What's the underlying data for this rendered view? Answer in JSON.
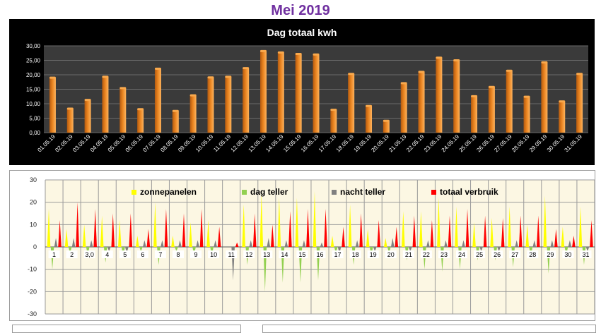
{
  "page_title": "Mei 2019",
  "chart_data": [
    {
      "type": "bar",
      "title": "Dag totaal kwh",
      "xlabel": "",
      "ylabel": "",
      "ylim": [
        0,
        30
      ],
      "yticks": [
        "0,00",
        "5,00",
        "10,00",
        "15,00",
        "20,00",
        "25,00",
        "30,00"
      ],
      "grid": true,
      "colors": {
        "bar": "#e8821e",
        "background": "#000000",
        "plot_area": "#3a3a3a",
        "text": "#ffffff"
      },
      "categories": [
        "01.05.19",
        "02.05.19",
        "03.05.19",
        "04.05.19",
        "05.05.19",
        "06.05.19",
        "07.05.19",
        "08.05.19",
        "09.05.19",
        "10.05.19",
        "11.05.19",
        "12.05.19",
        "13.05.19",
        "14.05.19",
        "15.05.19",
        "16.05.19",
        "17.05.19",
        "18.05.19",
        "19.05.19",
        "20.05.19",
        "21.05.19",
        "22.05.19",
        "23.05.19",
        "24.05.19",
        "25.05.19",
        "26.05.19",
        "27.05.19",
        "28.05.19",
        "29.05.19",
        "30.05.19",
        "31.05.19"
      ],
      "values": [
        19.0,
        8.3,
        11.3,
        19.3,
        15.4,
        8.1,
        22.1,
        7.5,
        12.9,
        19.1,
        19.3,
        22.3,
        28.2,
        27.7,
        27.2,
        27.0,
        7.9,
        20.3,
        9.2,
        4.1,
        17.1,
        21.0,
        25.9,
        25.0,
        12.6,
        15.8,
        21.4,
        12.4,
        24.3,
        10.8,
        20.3
      ]
    },
    {
      "type": "area",
      "title": "",
      "xlabel": "",
      "ylabel": "",
      "ylim": [
        -30,
        30
      ],
      "yticks": [
        "-30",
        "-20",
        "-10",
        "0",
        "10",
        "20",
        "30"
      ],
      "grid": true,
      "legend_position": "top",
      "categories": [
        "1",
        "2",
        "3,0",
        "4",
        "5",
        "6",
        "7",
        "8",
        "9",
        "10",
        "11",
        "12",
        "13",
        "14",
        "15",
        "16",
        "17",
        "18",
        "19",
        "20",
        "21",
        "22",
        "23",
        "24",
        "25",
        "26",
        "27",
        "28",
        "29",
        "30",
        "31"
      ],
      "series": [
        {
          "name": "zonnepanelen",
          "color": "#ffff00",
          "values": [
            17,
            8,
            10,
            14,
            12,
            5,
            20,
            5,
            11,
            12,
            0,
            19,
            24,
            22,
            22,
            25,
            5,
            19,
            8,
            4,
            16,
            16,
            22,
            18,
            11,
            13,
            18,
            10,
            23,
            9,
            18
          ]
        },
        {
          "name": "dag teller",
          "color": "#92d050",
          "values": [
            -10,
            -3,
            -4,
            -7,
            -5,
            -2,
            -8,
            -2,
            -4,
            -4,
            0,
            -8,
            -20,
            -16,
            -16,
            -15,
            -3,
            -8,
            -4,
            -3,
            -6,
            -10,
            -11,
            -10,
            -6,
            -6,
            -9,
            -5,
            -12,
            -4,
            -8
          ]
        },
        {
          "name": "nacht teller",
          "color": "#808080",
          "values": [
            4,
            4,
            3,
            -2,
            -3,
            3,
            3,
            3,
            3,
            3,
            -15,
            3,
            4,
            3,
            3,
            2,
            -3,
            3,
            -2,
            4,
            -2,
            3,
            3,
            3,
            -2,
            -2,
            3,
            3,
            3,
            3,
            -2
          ]
        },
        {
          "name": "totaal verbruik",
          "color": "#ff0000",
          "values": [
            12,
            20,
            17,
            15,
            15,
            8,
            17,
            15,
            17,
            9,
            2,
            15,
            10,
            16,
            17,
            17,
            9,
            15,
            12,
            9,
            14,
            12,
            14,
            17,
            14,
            13,
            14,
            14,
            8,
            5,
            12
          ]
        }
      ]
    }
  ]
}
